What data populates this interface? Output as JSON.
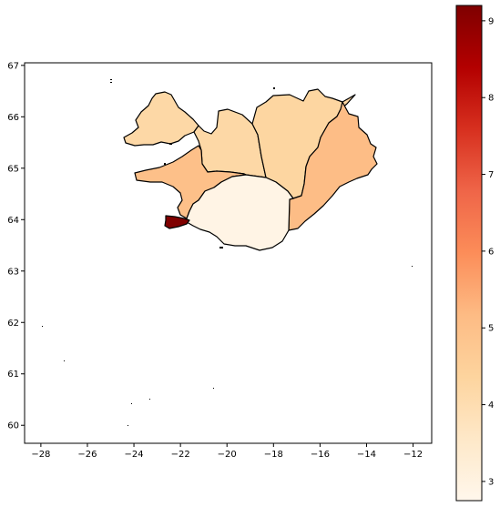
{
  "map": {
    "xticks": [
      {
        "label": "−28",
        "v": -28
      },
      {
        "label": "−26",
        "v": -26
      },
      {
        "label": "−24",
        "v": -24
      },
      {
        "label": "−22",
        "v": -22
      },
      {
        "label": "−20",
        "v": -20
      },
      {
        "label": "−18",
        "v": -18
      },
      {
        "label": "−16",
        "v": -16
      },
      {
        "label": "−14",
        "v": -14
      },
      {
        "label": "−12",
        "v": -12
      }
    ],
    "yticks": [
      {
        "label": "60",
        "v": 60
      },
      {
        "label": "61",
        "v": 61
      },
      {
        "label": "62",
        "v": 62
      },
      {
        "label": "63",
        "v": 63
      },
      {
        "label": "64",
        "v": 64
      },
      {
        "label": "65",
        "v": 65
      },
      {
        "label": "66",
        "v": 66
      },
      {
        "label": "67",
        "v": 67
      }
    ],
    "xlim": [
      -28.7,
      -11.2
    ],
    "ylim": [
      59.65,
      67.05
    ]
  },
  "colorbar": {
    "min": 2.75,
    "max": 9.2,
    "cmap": "OrRd",
    "ticks": [
      {
        "label": "3",
        "v": 3
      },
      {
        "label": "4",
        "v": 4
      },
      {
        "label": "5",
        "v": 5
      },
      {
        "label": "6",
        "v": 6
      },
      {
        "label": "7",
        "v": 7
      },
      {
        "label": "8",
        "v": 8
      },
      {
        "label": "9",
        "v": 9
      }
    ]
  },
  "chart_data": {
    "type": "choropleth",
    "regions": [
      {
        "id": "westfjords",
        "value": 4.2
      },
      {
        "id": "northwest",
        "value": 4.2
      },
      {
        "id": "northeast",
        "value": 4.3
      },
      {
        "id": "west",
        "value": 5.0
      },
      {
        "id": "east",
        "value": 5.1
      },
      {
        "id": "south",
        "value": 2.9
      },
      {
        "id": "capital",
        "value": 9.2
      }
    ]
  }
}
